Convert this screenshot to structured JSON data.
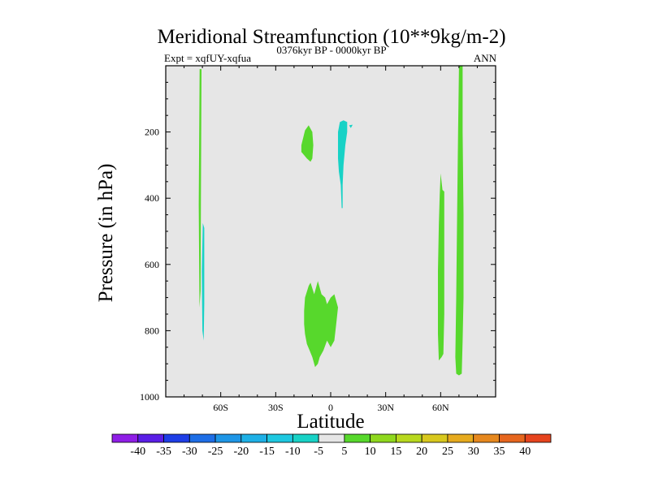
{
  "chart_data": {
    "type": "contour",
    "title": "Meridional Streamfunction (10**9kg/m-2)",
    "left_string": "Expt = xqfUY-xqfua",
    "center_string": "0376kyr BP - 0000kyr BP",
    "right_string": "ANN",
    "xlabel": "Latitude",
    "ylabel": "Pressure (in hPa)",
    "xlim": [
      -90,
      90
    ],
    "ylim": [
      1000,
      0
    ],
    "x_ticks": [
      {
        "value": -60,
        "label": "60S"
      },
      {
        "value": -30,
        "label": "30S"
      },
      {
        "value": 0,
        "label": "0"
      },
      {
        "value": 30,
        "label": "30N"
      },
      {
        "value": 60,
        "label": "60N"
      }
    ],
    "y_ticks": [
      {
        "value": 200,
        "label": "200"
      },
      {
        "value": 400,
        "label": "400"
      },
      {
        "value": 600,
        "label": "600"
      },
      {
        "value": 800,
        "label": "800"
      },
      {
        "value": 1000,
        "label": "1000"
      }
    ],
    "background_level_color": "#e6e6e6",
    "regions": [
      {
        "name": "sh-polar-thin-line",
        "value": 5,
        "color": "#57d82c",
        "points": [
          [
            -71.5,
            10
          ],
          [
            -70.5,
            10
          ],
          [
            -70.8,
            400
          ],
          [
            -71,
            680
          ],
          [
            -71.6,
            730
          ],
          [
            -72,
            420
          ]
        ]
      },
      {
        "name": "sh-subpolar-negative",
        "value": -10,
        "color": "#18d2c6",
        "points": [
          [
            -69.8,
            475
          ],
          [
            -69,
            490
          ],
          [
            -69,
            720
          ],
          [
            -69.3,
            830
          ],
          [
            -70,
            800
          ],
          [
            -70.3,
            620
          ]
        ]
      },
      {
        "name": "tropical-upper-positive",
        "value": 5,
        "color": "#57d82c",
        "points": [
          [
            -16,
            240
          ],
          [
            -14,
            195
          ],
          [
            -12,
            180
          ],
          [
            -10,
            200
          ],
          [
            -9.5,
            240
          ],
          [
            -10,
            280
          ],
          [
            -11,
            290
          ],
          [
            -13,
            280
          ],
          [
            -16,
            260
          ]
        ]
      },
      {
        "name": "tropical-upper-negative",
        "value": -10,
        "color": "#18d2c6",
        "points": [
          [
            4,
            200
          ],
          [
            5,
            170
          ],
          [
            7,
            165
          ],
          [
            9,
            170
          ],
          [
            9,
            200
          ],
          [
            8,
            240
          ],
          [
            7,
            300
          ],
          [
            6.5,
            360
          ],
          [
            6.5,
            430
          ],
          [
            6,
            430
          ],
          [
            5.5,
            360
          ],
          [
            4.5,
            320
          ],
          [
            4,
            280
          ],
          [
            4,
            240
          ]
        ]
      },
      {
        "name": "tropical-upper-negative-speck",
        "value": -10,
        "color": "#18d2c6",
        "points": [
          [
            10,
            180
          ],
          [
            12,
            178
          ],
          [
            11,
            188
          ]
        ]
      },
      {
        "name": "tropical-lower-positive",
        "value": 5,
        "color": "#57d82c",
        "points": [
          [
            -14,
            700
          ],
          [
            -12,
            665
          ],
          [
            -11,
            655
          ],
          [
            -9,
            690
          ],
          [
            -7,
            650
          ],
          [
            -5,
            690
          ],
          [
            -3,
            700
          ],
          [
            -2,
            720
          ],
          [
            0,
            700
          ],
          [
            2,
            690
          ],
          [
            4,
            730
          ],
          [
            3,
            780
          ],
          [
            2,
            830
          ],
          [
            0,
            850
          ],
          [
            -2,
            830
          ],
          [
            -4,
            860
          ],
          [
            -6,
            880
          ],
          [
            -7,
            900
          ],
          [
            -8.5,
            910
          ],
          [
            -10,
            880
          ],
          [
            -11.5,
            860
          ],
          [
            -13,
            840
          ],
          [
            -14,
            810
          ],
          [
            -14.5,
            780
          ],
          [
            -14.5,
            740
          ]
        ]
      },
      {
        "name": "nh-60n-positive",
        "value": 5,
        "color": "#57d82c",
        "points": [
          [
            60,
            325
          ],
          [
            61,
            375
          ],
          [
            62,
            380
          ],
          [
            62,
            500
          ],
          [
            62,
            630
          ],
          [
            62,
            750
          ],
          [
            61.5,
            870
          ],
          [
            60.5,
            880
          ],
          [
            59,
            890
          ],
          [
            58.5,
            810
          ],
          [
            58.5,
            620
          ],
          [
            59,
            480
          ],
          [
            59.5,
            390
          ]
        ]
      },
      {
        "name": "nh-70n-positive",
        "value": 5,
        "color": "#57d82c",
        "points": [
          [
            70,
            0
          ],
          [
            72,
            0
          ],
          [
            72,
            200
          ],
          [
            72.5,
            450
          ],
          [
            72.5,
            700
          ],
          [
            72,
            830
          ],
          [
            71.5,
            930
          ],
          [
            70,
            935
          ],
          [
            68.5,
            930
          ],
          [
            68,
            880
          ],
          [
            68.5,
            700
          ],
          [
            69,
            450
          ],
          [
            69.5,
            200
          ]
        ]
      }
    ],
    "colorbar": {
      "levels": [
        -40,
        -35,
        -30,
        -25,
        -20,
        -15,
        -10,
        -5,
        5,
        10,
        15,
        20,
        25,
        30,
        35,
        40
      ],
      "labels": [
        "-40",
        "-35",
        "-30",
        "-25",
        "-20",
        "-15",
        "-10",
        "-5",
        "5",
        "10",
        "15",
        "20",
        "25",
        "30",
        "35",
        "40"
      ],
      "colors": [
        "#8f1ee6",
        "#5a1ee6",
        "#1e3ee6",
        "#1e6ee6",
        "#1e96e6",
        "#1eb0e6",
        "#1ec8e0",
        "#18d2c6",
        "#e6e6e6",
        "#57d82c",
        "#8fd81e",
        "#b8d81e",
        "#d8c81e",
        "#e6aa1e",
        "#e6881e",
        "#e6661e",
        "#e6441e"
      ]
    }
  }
}
